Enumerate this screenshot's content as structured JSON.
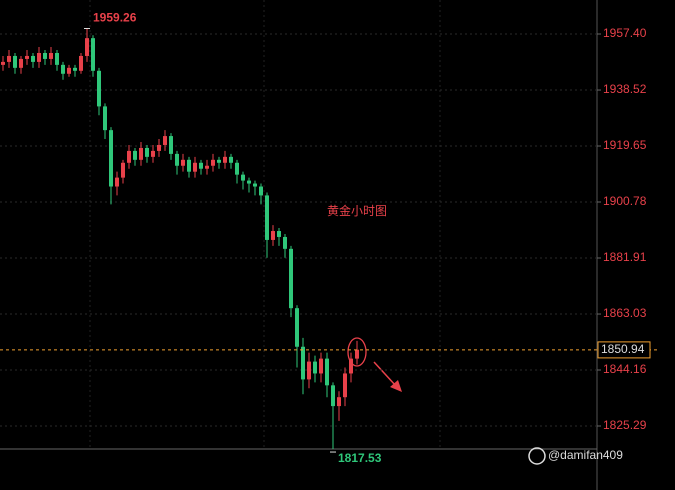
{
  "chart_data": {
    "type": "candlestick",
    "annotation": "黄金小时图",
    "watermark": "@damifan409",
    "up_color": "#e8414a",
    "down_color": "#2fc77a",
    "last_price": 1850.94,
    "last_price_color": "#f0a030",
    "grid": true,
    "ylim": [
      1817.54,
      1968.86
    ],
    "yticks": [
      1825.29,
      1844.16,
      1863.03,
      1881.91,
      1900.78,
      1919.65,
      1938.52,
      {
        "value": 1957.4,
        "label": "1957.40"
      }
    ],
    "open": [
      1947,
      1948,
      1950,
      1946,
      1949,
      1950,
      1948,
      1951,
      1949,
      1951,
      1947,
      1944,
      1946,
      1945,
      1950,
      1956,
      1945,
      1933,
      1925,
      1906,
      1909,
      1914,
      1918,
      1915,
      1919,
      1916,
      1918,
      1920,
      1923,
      1917,
      1913,
      1915,
      1911,
      1914,
      1912,
      1913,
      1915,
      1914,
      1916,
      1914,
      1910,
      1908,
      1907,
      1906,
      1903,
      1888,
      1891,
      1889,
      1885,
      1865,
      1852,
      1841,
      1847,
      1843,
      1848,
      1839,
      1832,
      1835,
      1843,
      1848
    ],
    "high": [
      1950,
      1952,
      1951,
      1950,
      1952,
      1951,
      1953,
      1952,
      1953,
      1952,
      1948,
      1947,
      1947,
      1951,
      1959.26,
      1957,
      1946,
      1934,
      1926,
      1911,
      1915,
      1920,
      1919,
      1921,
      1920,
      1920,
      1922,
      1925,
      1924,
      1918,
      1917,
      1916,
      1916,
      1915,
      1915,
      1917,
      1916,
      1918,
      1917,
      1915,
      1911,
      1909,
      1908,
      1907,
      1904,
      1893,
      1892,
      1890,
      1886,
      1866,
      1855,
      1850,
      1849,
      1850,
      1850,
      1840,
      1837,
      1845,
      1850,
      1854
    ],
    "low": [
      1945,
      1946,
      1944,
      1944,
      1947,
      1946,
      1946,
      1947,
      1947,
      1945,
      1942,
      1943,
      1943,
      1944,
      1948,
      1943,
      1930,
      1922,
      1900,
      1903,
      1907,
      1912,
      1913,
      1913,
      1914,
      1914,
      1916,
      1918,
      1915,
      1910,
      1911,
      1909,
      1909,
      1910,
      1910,
      1911,
      1912,
      1912,
      1912,
      1907,
      1905,
      1904,
      1903,
      1900,
      1882,
      1886,
      1886,
      1882,
      1862,
      1845,
      1836,
      1838,
      1840,
      1840,
      1835,
      1817.53,
      1827,
      1832,
      1840,
      1846
    ],
    "close": [
      1948,
      1950,
      1946,
      1949,
      1950,
      1948,
      1951,
      1949,
      1951,
      1947,
      1944,
      1946,
      1945,
      1950,
      1956,
      1945,
      1933,
      1925,
      1906,
      1909,
      1914,
      1918,
      1915,
      1919,
      1916,
      1918,
      1920,
      1923,
      1917,
      1913,
      1915,
      1911,
      1914,
      1912,
      1913,
      1915,
      1914,
      1916,
      1914,
      1910,
      1908,
      1907,
      1906,
      1903,
      1888,
      1891,
      1889,
      1885,
      1865,
      1852,
      1841,
      1847,
      1843,
      1848,
      1839,
      1832,
      1835,
      1843,
      1848,
      1851
    ]
  }
}
